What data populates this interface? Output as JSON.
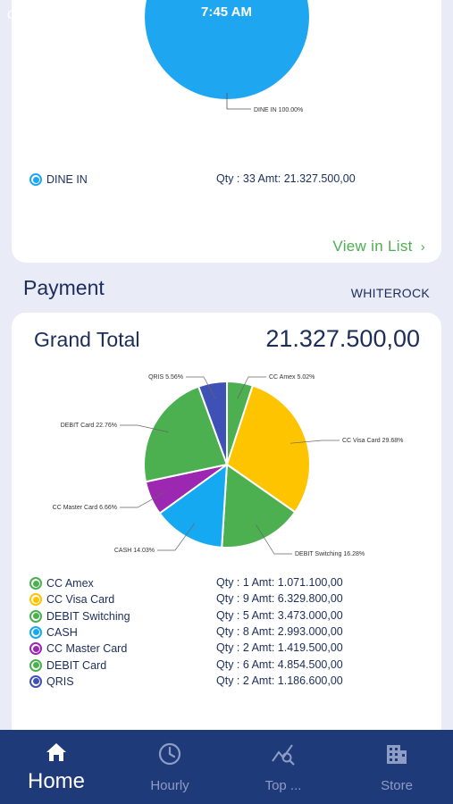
{
  "status_bar": {
    "time": "7:45 AM",
    "left_glyph": "C"
  },
  "sales_card": {
    "pie_label": "DINE IN  100.00%",
    "legend": [
      {
        "name": "DINE IN",
        "qty_amt": "Qty : 33  Amt: 21.327.500,00",
        "color": "#1ea7f0"
      }
    ],
    "view_link": "View in List"
  },
  "payment": {
    "section_title": "Payment",
    "store": "WHITEROCK",
    "grand_total_label": "Grand Total",
    "grand_total_value": "21.327.500,00"
  },
  "chart_data": {
    "type": "pie",
    "slices": [
      {
        "label": "CC Amex",
        "percent": 5.02,
        "color": "#4caf50"
      },
      {
        "label": "CC Visa Card",
        "percent": 29.68,
        "color": "#fec400"
      },
      {
        "label": "DEBIT Switching",
        "percent": 16.28,
        "color": "#4caf50"
      },
      {
        "label": "CASH",
        "percent": 14.03,
        "color": "#15a9f1"
      },
      {
        "label": "CC Master Card",
        "percent": 6.66,
        "color": "#9c27b0"
      },
      {
        "label": "DEBIT Card",
        "percent": 22.76,
        "color": "#4caf50"
      },
      {
        "label": "QRIS",
        "percent": 5.56,
        "color": "#3f51b5"
      }
    ],
    "pie_labels": [
      "CC Amex  5.02%",
      "CC Visa Card  29.68%",
      "DEBIT Switching  16.28%",
      "CASH  14.03%",
      "CC Master Card  6.66%",
      "DEBIT Card  22.76%",
      "QRIS  5.56%"
    ]
  },
  "payment_legend": [
    {
      "name": "CC Amex",
      "qty_amt": "Qty : 1  Amt: 1.071.100,00",
      "color": "#4caf50"
    },
    {
      "name": "CC Visa Card",
      "qty_amt": "Qty : 9  Amt: 6.329.800,00",
      "color": "#fec400"
    },
    {
      "name": "DEBIT Switching",
      "qty_amt": "Qty : 5  Amt: 3.473.000,00",
      "color": "#4caf50"
    },
    {
      "name": "CASH",
      "qty_amt": "Qty : 8  Amt: 2.993.000,00",
      "color": "#15a9f1"
    },
    {
      "name": "CC Master Card",
      "qty_amt": "Qty : 2  Amt: 1.419.500,00",
      "color": "#9c27b0"
    },
    {
      "name": "DEBIT Card",
      "qty_amt": "Qty : 6  Amt: 4.854.500,00",
      "color": "#4caf50"
    },
    {
      "name": "QRIS",
      "qty_amt": "Qty : 2  Amt: 1.186.600,00",
      "color": "#3f51b5"
    }
  ],
  "bottom_nav": [
    {
      "label": "Home",
      "icon": "home-icon"
    },
    {
      "label": "Hourly",
      "icon": "clock-icon"
    },
    {
      "label": "Top ...",
      "icon": "chart-search-icon"
    },
    {
      "label": "Store",
      "icon": "building-icon"
    }
  ]
}
